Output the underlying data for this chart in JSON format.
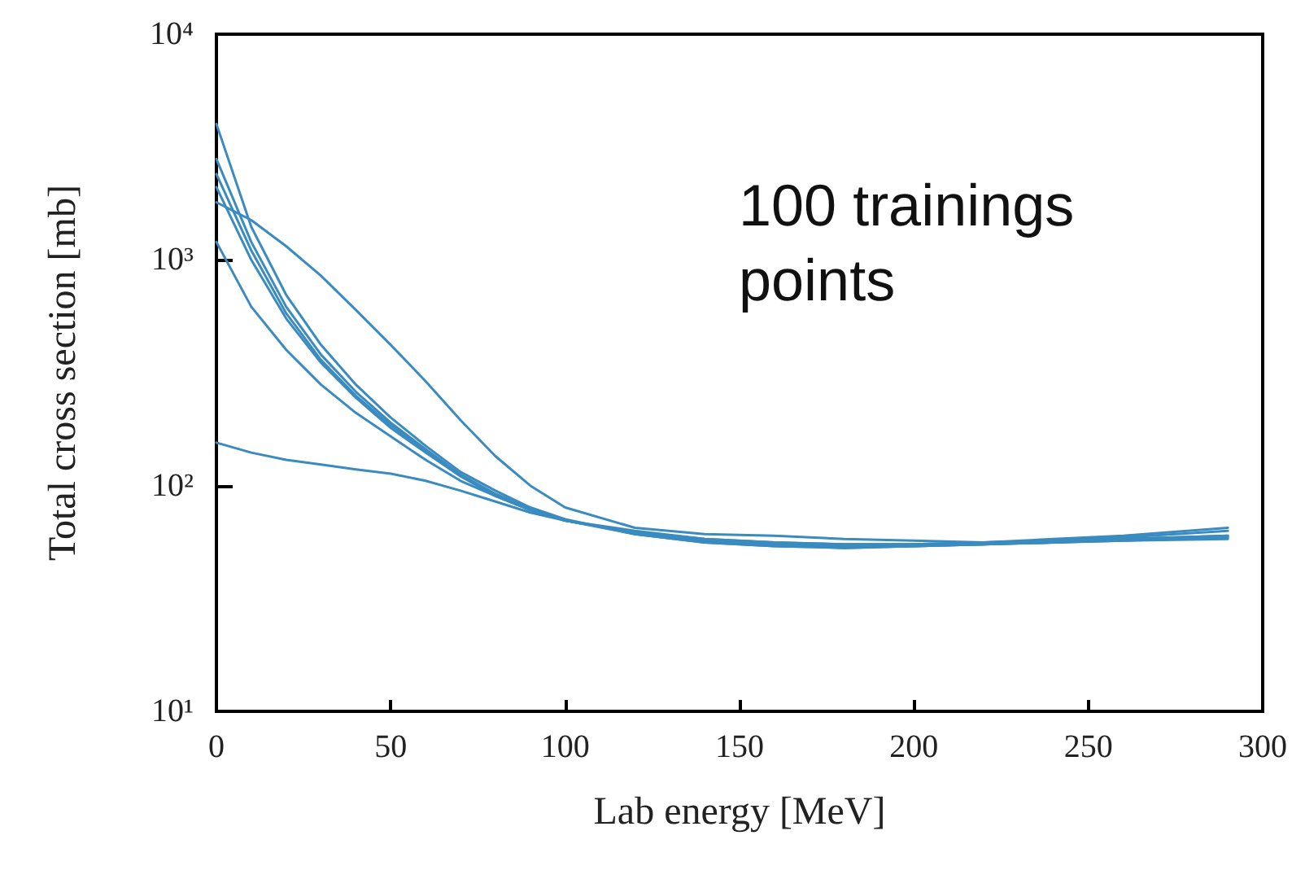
{
  "chart_data": {
    "type": "line",
    "xlabel": "Lab energy [MeV]",
    "ylabel": "Total cross section [mb]",
    "annotations": [
      "100 trainings points"
    ],
    "log": "y",
    "grid": false,
    "marker": "none",
    "line_style": "solid",
    "x": [
      0,
      10,
      20,
      30,
      40,
      50,
      60,
      70,
      80,
      90,
      100,
      120,
      140,
      160,
      180,
      200,
      220,
      240,
      260,
      290
    ],
    "xlim": [
      0,
      300
    ],
    "xticks": [
      0,
      50,
      100,
      150,
      200,
      250,
      300
    ],
    "ylim": [
      10,
      10000
    ],
    "yticks": [
      {
        "value": 10,
        "label": "10¹"
      },
      {
        "value": 100,
        "label": "10²"
      },
      {
        "value": 1000,
        "label": "10³"
      },
      {
        "value": 10000,
        "label": "10⁴"
      }
    ],
    "series": [
      {
        "color": "#3a8bc0",
        "values": [
          1800,
          1500,
          1150,
          850,
          600,
          420,
          290,
          195,
          135,
          100,
          80,
          65,
          61,
          60,
          58,
          57,
          56,
          58,
          60,
          65
        ]
      },
      {
        "color": "#3a8bc0",
        "values": [
          155,
          140,
          130,
          124,
          118,
          113,
          105,
          95,
          85,
          76,
          70,
          63,
          58,
          56,
          55,
          55,
          56,
          57,
          59,
          63
        ]
      },
      {
        "color": "#3a8bc0",
        "values": [
          1200,
          620,
          400,
          280,
          210,
          165,
          130,
          105,
          90,
          78,
          70,
          62,
          57,
          55,
          54,
          54,
          55,
          56,
          57,
          59
        ]
      },
      {
        "color": "#3a8bc0",
        "values": [
          4000,
          1400,
          700,
          420,
          280,
          200,
          150,
          115,
          95,
          80,
          71,
          61,
          56,
          54,
          53,
          54,
          55,
          56,
          57,
          58
        ]
      },
      {
        "color": "#3a8bc0",
        "values": [
          2800,
          1200,
          620,
          380,
          260,
          190,
          145,
          112,
          92,
          79,
          70,
          62,
          57,
          55,
          54,
          55,
          56,
          57,
          58,
          60
        ]
      },
      {
        "color": "#3a8bc0",
        "values": [
          2100,
          1000,
          550,
          350,
          245,
          180,
          140,
          110,
          90,
          78,
          70,
          62,
          58,
          56,
          55,
          55,
          55,
          56,
          58,
          60
        ]
      },
      {
        "color": "#3a8bc0",
        "values": [
          2400,
          1100,
          580,
          360,
          250,
          185,
          142,
          111,
          91,
          78,
          70,
          61,
          56,
          54,
          53,
          54,
          55,
          57,
          58,
          59
        ]
      }
    ]
  }
}
